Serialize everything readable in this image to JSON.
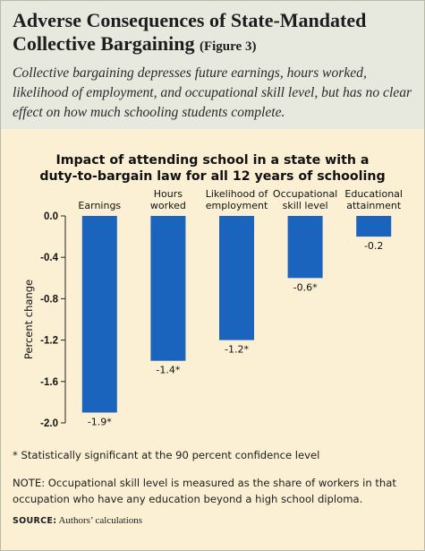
{
  "header": {
    "title_line1": "Adverse Consequences of State-Mandated",
    "title_line2": "Collective Bargaining",
    "figure_label": "(Figure 3)",
    "intro": "Collective bargaining depresses future earnings, hours worked, likelihood of employment, and occupational skill level, but has no clear effect on how much schooling students complete."
  },
  "chart_data": {
    "type": "bar",
    "title_line1": "Impact of attending school in a state with a",
    "title_line2": "duty-to-bargain law for all 12 years of schooling",
    "categories": [
      [
        "Earnings"
      ],
      [
        "Hours",
        "worked"
      ],
      [
        "Likelihood of",
        "employment"
      ],
      [
        "Occupational",
        "skill level"
      ],
      [
        "Educational",
        "attainment"
      ]
    ],
    "values": [
      -1.9,
      -1.4,
      -1.2,
      -0.6,
      -0.2
    ],
    "data_labels": [
      "-1.9*",
      "-1.4*",
      "-1.2*",
      "-0.6*",
      "-0.2"
    ],
    "ylabel": "Percent change",
    "yticks": [
      "0.0",
      "-0.4",
      "-0.8",
      "-1.2",
      "-1.6",
      "-2.0"
    ],
    "tick_values": [
      0,
      -0.4,
      -0.8,
      -1.2,
      -1.6,
      -2.0
    ],
    "ylim": [
      -2.0,
      0
    ],
    "bar_color": "#1a64bd"
  },
  "notes": {
    "significance": "* Statistically significant at the 90 percent confidence level",
    "note": "NOTE: Occupational skill level is measured as the share of workers in that occupation who have any education beyond a high school diploma.",
    "source_label": "SOURCE:",
    "source_text": "Authors’ calculations"
  }
}
